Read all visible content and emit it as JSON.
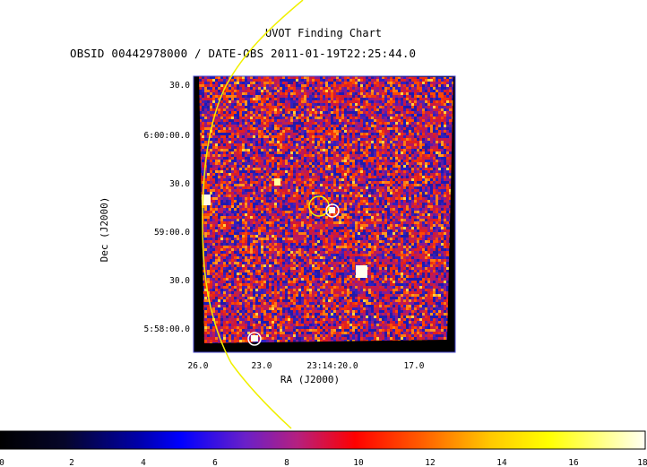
{
  "title": "UVOT Finding Chart",
  "subtitle": "OBSID 00442978000 / DATE-OBS 2011-01-19T22:25:44.0",
  "chart_data": {
    "type": "heatmap",
    "title": "UVOT Finding Chart",
    "subtitle": "OBSID 00442978000 / DATE-OBS 2011-01-19T22:25:44.0",
    "xlabel": "RA (J2000)",
    "ylabel": "Dec (J2000)",
    "x_ticks": [
      "26.0",
      "23.0",
      "23:14:20.0",
      "17.0"
    ],
    "y_ticks": [
      "30.0",
      "6:00:00.0",
      "30.0",
      "59:00.0",
      "30.0",
      "5:58:00.0"
    ],
    "colorbar": {
      "min": 0,
      "max": 18,
      "ticks": [
        0,
        2,
        4,
        6,
        8,
        10,
        12,
        14,
        16,
        18
      ]
    },
    "grid": false
  },
  "colors": {
    "background": "#ffffff",
    "frame": "#4a4ad0",
    "overlay_circle": "#f0f000",
    "source_circle": "#ffffff"
  }
}
